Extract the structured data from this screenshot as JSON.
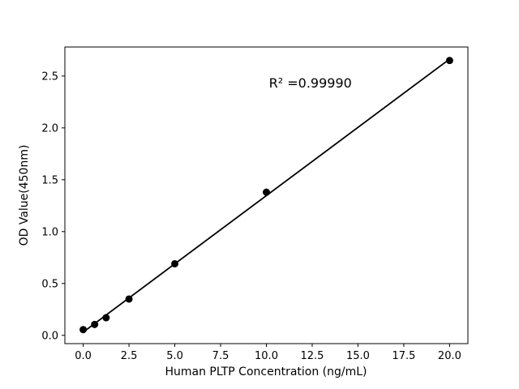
{
  "figure": {
    "background": "#ffffff",
    "foreground": "#000000"
  },
  "chart_data": {
    "type": "scatter",
    "x": [
      0,
      0.625,
      1.25,
      2.5,
      5,
      10,
      20
    ],
    "y": [
      0.055,
      0.105,
      0.17,
      0.35,
      0.69,
      1.38,
      2.65
    ],
    "fit_line": true,
    "title": "",
    "xlabel": "Human PLTP Concentration (ng/mL)",
    "ylabel": "OD Value(450nm)",
    "xlim": [
      -1,
      21
    ],
    "ylim": [
      -0.08,
      2.78
    ],
    "xticks": [
      0.0,
      2.5,
      5.0,
      7.5,
      10.0,
      12.5,
      15.0,
      17.5,
      20.0
    ],
    "yticks": [
      0.0,
      0.5,
      1.0,
      1.5,
      2.0,
      2.5
    ],
    "grid": false,
    "legend": null,
    "marker_color": "#000000",
    "line_color": "#000000",
    "annotation": {
      "text": "R² =0.99990",
      "x": 12.4,
      "y": 2.43,
      "r_squared": 0.9999
    }
  }
}
